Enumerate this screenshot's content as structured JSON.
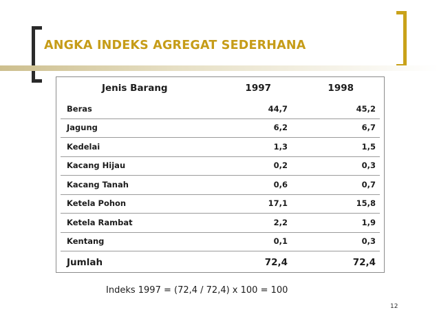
{
  "slide": {
    "title": "ANGKA INDEKS AGREGAT SEDERHANA",
    "formula": "Indeks 1997 = (72,4 / 72,4) x 100 = 100",
    "page_number": "12"
  },
  "table": {
    "headers": [
      "Jenis Barang",
      "1997",
      "1998"
    ],
    "rows": [
      [
        "Beras",
        "44,7",
        "45,2"
      ],
      [
        "Jagung",
        "6,2",
        "6,7"
      ],
      [
        "Kedelai",
        "1,3",
        "1,5"
      ],
      [
        "Kacang Hijau",
        "0,2",
        "0,3"
      ],
      [
        "Kacang Tanah",
        "0,6",
        "0,7"
      ],
      [
        "Ketela Pohon",
        "17,1",
        "15,8"
      ],
      [
        "Ketela Rambat",
        "2,2",
        "1,9"
      ],
      [
        "Kentang",
        "0,1",
        "0,3"
      ]
    ],
    "total": [
      "Jumlah",
      "72,4",
      "72,4"
    ]
  },
  "colors": {
    "title": "#c69c18",
    "bracket_left": "#2a2a2a",
    "bracket_right": "#c9a21a"
  }
}
